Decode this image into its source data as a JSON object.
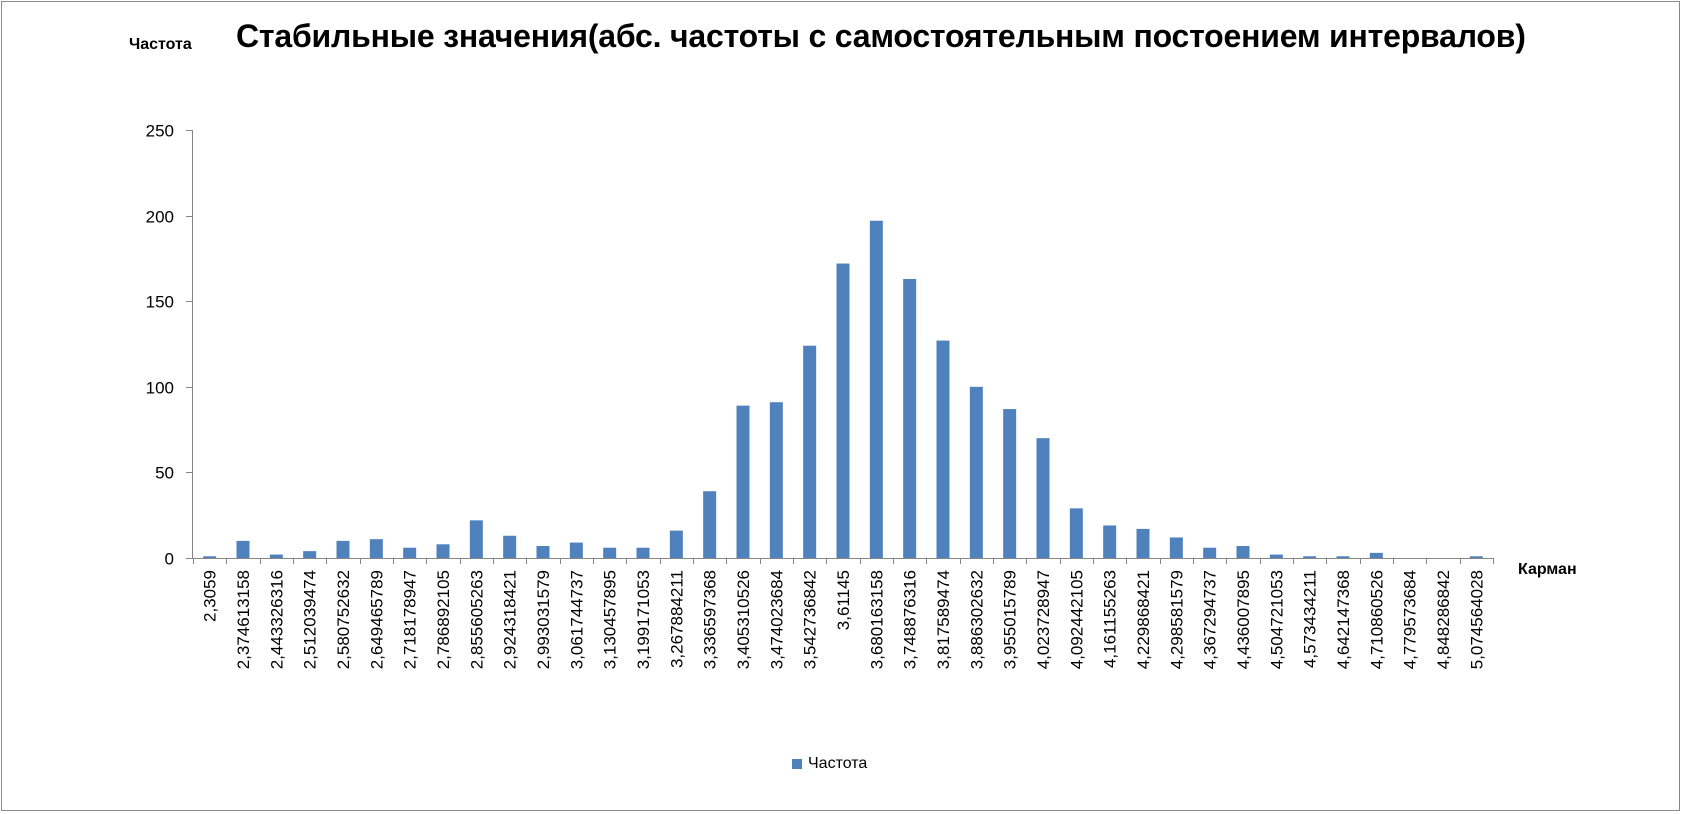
{
  "chart_data": {
    "type": "bar",
    "title": "Стабильные значения(абс. частоты с самостоятельным постоением интервалов)",
    "ylabel": "Частота",
    "xlabel": "Карман",
    "ylim": [
      0,
      250
    ],
    "yticks": [
      0,
      50,
      100,
      150,
      200,
      250
    ],
    "legend": {
      "position": "bottom",
      "entries": [
        "Частота"
      ]
    },
    "color": "#4f81bd",
    "categories": [
      "2,3059",
      "2,374613158",
      "2,443326316",
      "2,512039474",
      "2,580752632",
      "2,649465789",
      "2,718178947",
      "2,786892105",
      "2,855605263",
      "2,924318421",
      "2,993031579",
      "3,061744737",
      "3,130457895",
      "3,199171053",
      "3,267884211",
      "3,336597368",
      "3,405310526",
      "3,474023684",
      "3,542736842",
      "3,61145",
      "3,680163158",
      "3,748876316",
      "3,817589474",
      "3,886302632",
      "3,955015789",
      "4,023728947",
      "4,092442105",
      "4,161155263",
      "4,229868421",
      "4,298581579",
      "4,367294737",
      "4,436007895",
      "4,504721053",
      "4,573434211",
      "4,642147368",
      "4,710860526",
      "4,779573684",
      "4,848286842",
      "5,074564028"
    ],
    "series": [
      {
        "name": "Частота",
        "values": [
          1,
          10,
          2,
          4,
          10,
          11,
          6,
          8,
          22,
          13,
          7,
          9,
          6,
          6,
          16,
          39,
          89,
          91,
          124,
          172,
          197,
          163,
          127,
          100,
          87,
          70,
          29,
          19,
          17,
          12,
          6,
          7,
          2,
          1,
          1,
          3,
          0,
          0,
          1
        ]
      }
    ]
  }
}
